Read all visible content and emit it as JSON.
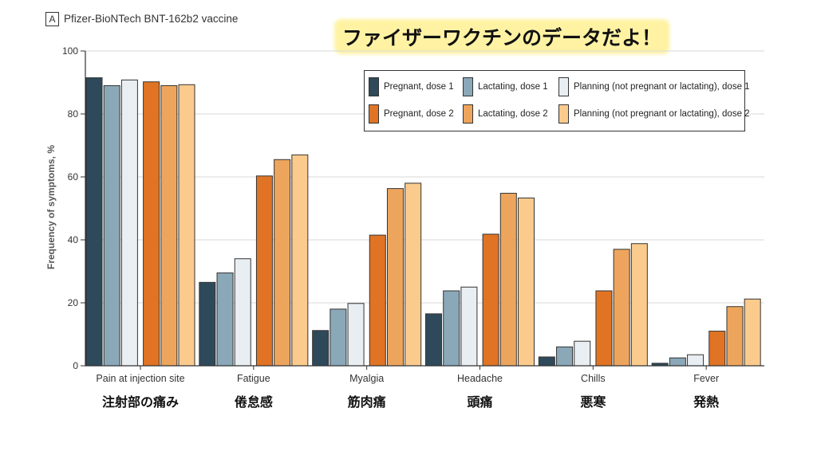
{
  "panel_label": "A",
  "banner_text": "ファイザーワクチンのデータだよ！",
  "chart_data": {
    "type": "bar",
    "title": "Pfizer-BioNTech BNT-162b2 vaccine",
    "ylabel": "Frequency of symptoms, %",
    "xlabel": "",
    "ylim": [
      0,
      100
    ],
    "yticks": [
      0,
      20,
      40,
      60,
      80,
      100
    ],
    "grid": "horizontal",
    "legend_position": "top-right",
    "categories": [
      "Pain at injection site",
      "Fatigue",
      "Myalgia",
      "Headache",
      "Chills",
      "Fever"
    ],
    "categories_ja": [
      "注射部の痛み",
      "倦怠感",
      "筋肉痛",
      "頭痛",
      "悪寒",
      "発熱"
    ],
    "series": [
      {
        "name": "Pregnant, dose 1",
        "color": "#2e4a5a",
        "values": [
          91.5,
          26.5,
          11.2,
          16.5,
          2.8,
          0.8
        ]
      },
      {
        "name": "Lactating, dose 1",
        "color": "#8aa8b8",
        "values": [
          89,
          29.5,
          18,
          23.8,
          6,
          2.5
        ]
      },
      {
        "name": "Planning (not pregnant or lactating), dose 1",
        "color": "#e8eef2",
        "values": [
          90.8,
          34,
          19.8,
          25,
          7.8,
          3.5
        ]
      },
      {
        "name": "Pregnant, dose 2",
        "color": "#e07424",
        "values": [
          90.2,
          60.3,
          41.5,
          41.8,
          23.8,
          11
        ]
      },
      {
        "name": "Lactating, dose 2",
        "color": "#eda55d",
        "values": [
          89,
          65.5,
          56.3,
          54.8,
          37,
          18.8
        ]
      },
      {
        "name": "Planning (not pregnant or lactating), dose 2",
        "color": "#fbcb8d",
        "values": [
          89.3,
          67,
          58,
          53.3,
          38.8,
          21.2
        ]
      }
    ]
  }
}
